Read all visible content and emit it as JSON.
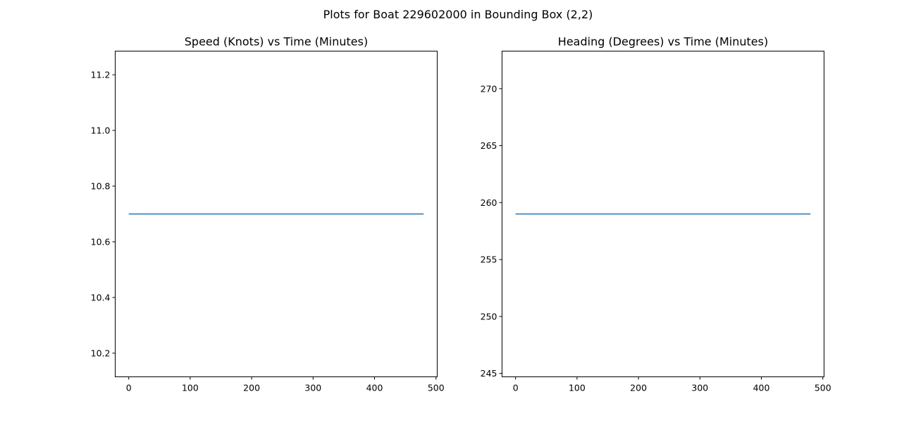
{
  "figure": {
    "suptitle": "Plots for Boat 229602000 in Bounding Box (2,2)"
  },
  "chart_data": [
    {
      "type": "line",
      "title": "Speed (Knots) vs Time (Minutes)",
      "xlabel": "",
      "ylabel": "",
      "xlim": [
        -22,
        502
      ],
      "ylim": [
        10.115,
        11.285
      ],
      "xticks": [
        0,
        100,
        200,
        300,
        400,
        500
      ],
      "yticks": [
        10.2,
        10.4,
        10.6,
        10.8,
        11.0,
        11.2
      ],
      "ytick_labels": [
        "10.2",
        "10.4",
        "10.6",
        "10.8",
        "11.0",
        "11.2"
      ],
      "grid": false,
      "series": [
        {
          "color": "#1f77b4",
          "x": [
            0,
            480
          ],
          "y": [
            10.7,
            10.7
          ]
        }
      ]
    },
    {
      "type": "line",
      "title": "Heading (Degrees) vs Time (Minutes)",
      "xlabel": "",
      "ylabel": "",
      "xlim": [
        -22,
        502
      ],
      "ylim": [
        244.7,
        273.3
      ],
      "xticks": [
        0,
        100,
        200,
        300,
        400,
        500
      ],
      "yticks": [
        245,
        250,
        255,
        260,
        265,
        270
      ],
      "ytick_labels": [
        "245",
        "250",
        "255",
        "260",
        "265",
        "270"
      ],
      "grid": false,
      "series": [
        {
          "color": "#1f77b4",
          "x": [
            0,
            480
          ],
          "y": [
            259,
            259
          ]
        }
      ]
    }
  ]
}
